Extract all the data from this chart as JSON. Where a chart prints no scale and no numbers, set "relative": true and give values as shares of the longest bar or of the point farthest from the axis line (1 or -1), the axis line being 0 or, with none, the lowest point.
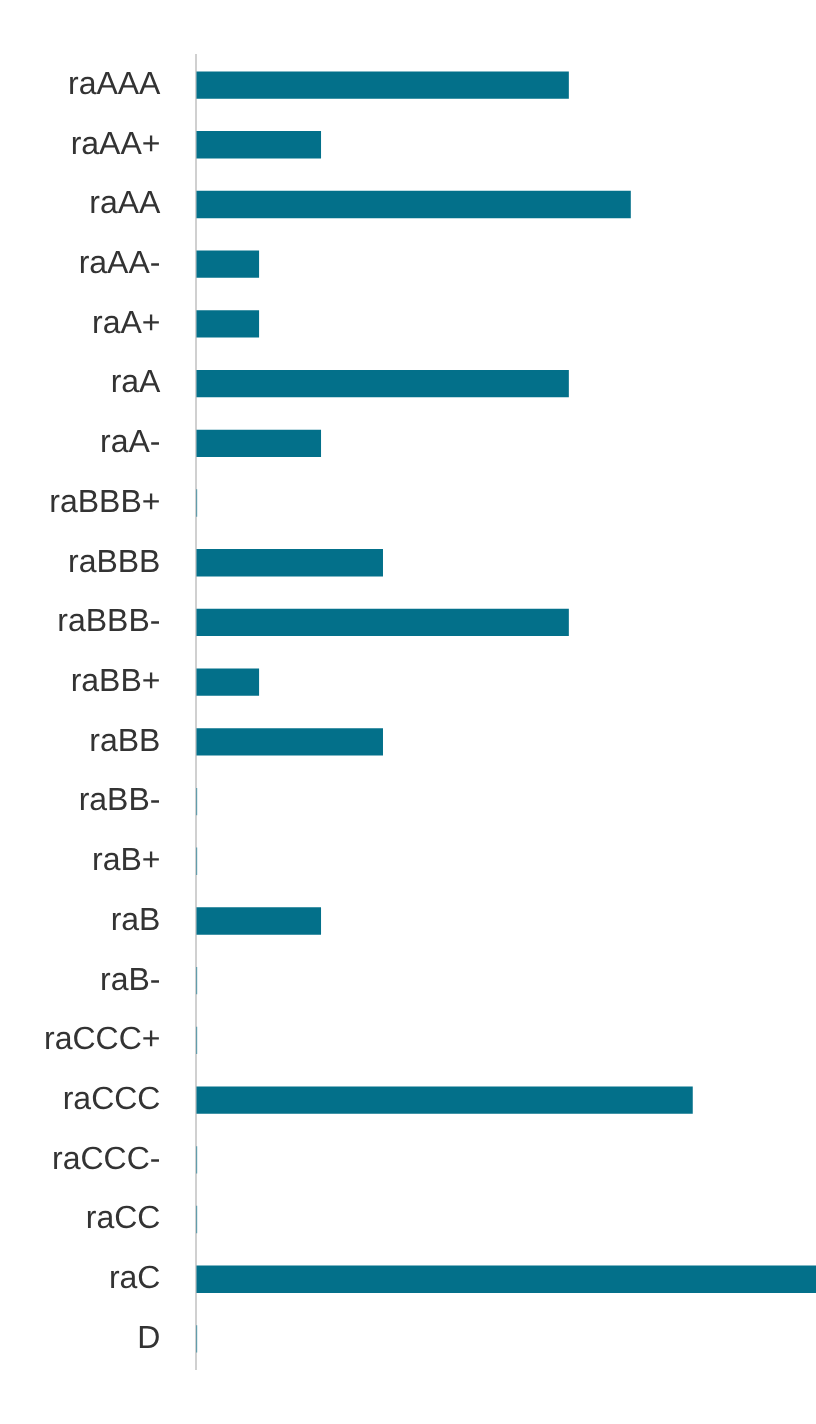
{
  "chart_data": {
    "type": "bar",
    "orientation": "horizontal",
    "relative": true,
    "categories": [
      "raAAA",
      "raAA+",
      "raAA",
      "raAA-",
      "raA+",
      "raA",
      "raA-",
      "raBBB+",
      "raBBB",
      "raBBB-",
      "raBB+",
      "raBB",
      "raBB-",
      "raB+",
      "raB",
      "raB-",
      "raCCC+",
      "raCCC",
      "raCCC-",
      "raCC",
      "raC",
      "D"
    ],
    "values": [
      0.6,
      0.2,
      0.7,
      0.1,
      0.1,
      0.6,
      0.2,
      0,
      0.3,
      0.6,
      0.1,
      0.3,
      0,
      0,
      0.2,
      0,
      0,
      0.8,
      0,
      0,
      1,
      0
    ],
    "color": "#03708a",
    "grid": false,
    "legend": false
  }
}
